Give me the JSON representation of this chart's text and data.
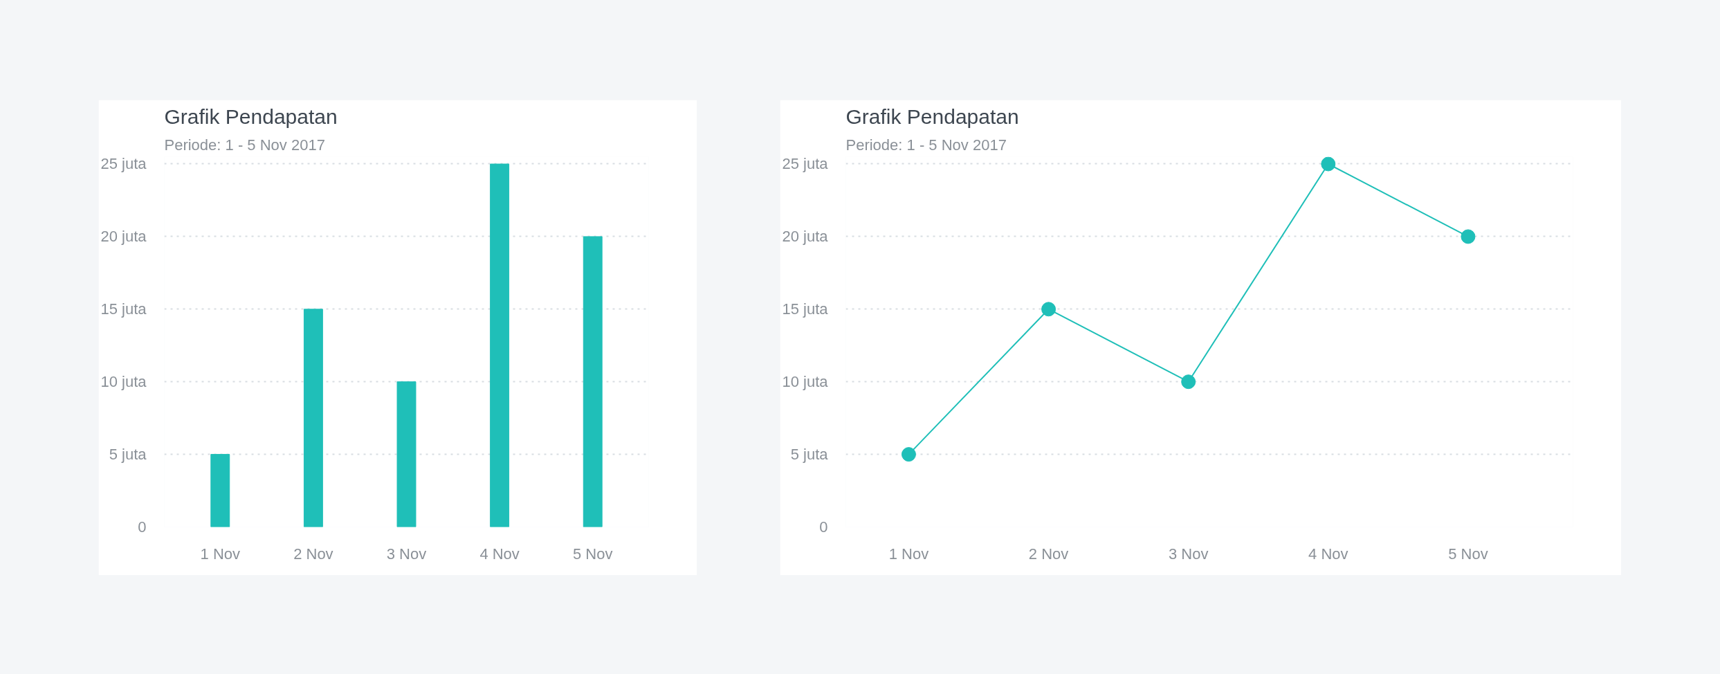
{
  "chart_data": [
    {
      "type": "bar",
      "title": "Grafik Pendapatan",
      "subtitle": "Periode: 1 - 5 Nov 2017",
      "categories": [
        "1 Nov",
        "2 Nov",
        "3 Nov",
        "4 Nov",
        "5 Nov"
      ],
      "values": [
        5,
        15,
        10,
        25,
        20
      ],
      "color": "#1fbfb8",
      "ylim": [
        0,
        25.5
      ],
      "yticks": [
        0,
        {
          "value": 5,
          "label": "5 juta"
        },
        {
          "value": 10,
          "label": "10 juta"
        },
        {
          "value": 15,
          "label": "15 juta"
        },
        {
          "value": 20,
          "label": "20 juta"
        },
        {
          "value": 25,
          "label": "25 juta"
        }
      ],
      "grid": "y"
    },
    {
      "type": "line",
      "title": "Grafik Pendapatan",
      "subtitle": "Periode: 1 - 5 Nov 2017",
      "categories": [
        "1 Nov",
        "2 Nov",
        "3 Nov",
        "4 Nov",
        "5 Nov"
      ],
      "values": [
        5,
        15,
        10,
        25,
        20
      ],
      "color": "#1fbfb8",
      "marker": "circle",
      "line_style": "solid",
      "ylim": [
        0,
        25.5
      ],
      "yticks": [
        0,
        {
          "value": 5,
          "label": "5 juta"
        },
        {
          "value": 10,
          "label": "10 juta"
        },
        {
          "value": 15,
          "label": "15 juta"
        },
        {
          "value": 20,
          "label": "20 juta"
        },
        {
          "value": 25,
          "label": "25 juta"
        }
      ],
      "grid": "y"
    }
  ]
}
